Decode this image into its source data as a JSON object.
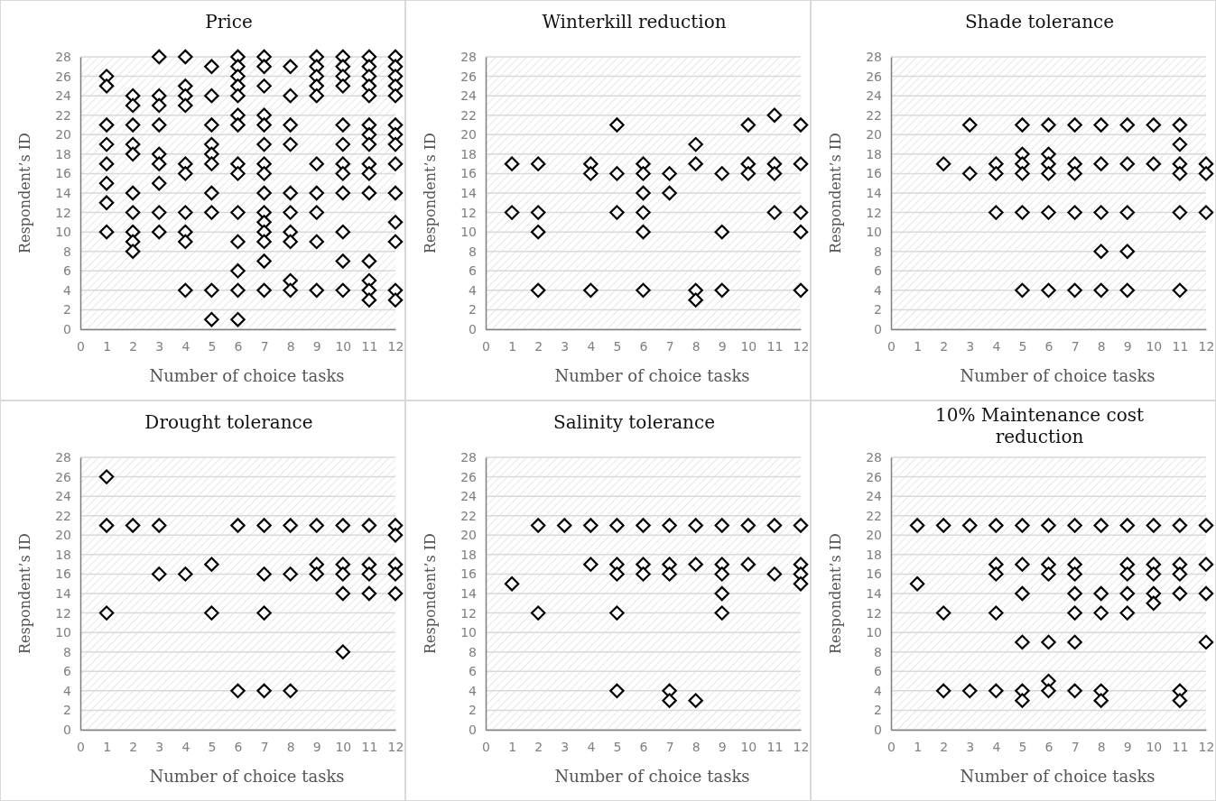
{
  "chart_data": [
    {
      "type": "scatter",
      "title": "Price",
      "xlabel": "Number of choice tasks",
      "ylabel": "Respondent’s ID",
      "xlim": [
        0,
        12
      ],
      "xticks": [
        0,
        1,
        2,
        3,
        4,
        5,
        6,
        7,
        8,
        9,
        10,
        11,
        12
      ],
      "ylim": [
        0,
        28
      ],
      "yticks": [
        0,
        2,
        4,
        6,
        8,
        10,
        12,
        14,
        16,
        18,
        20,
        22,
        24,
        26,
        28
      ],
      "grid": "y",
      "marker": "diamond",
      "series": [
        {
          "color": "#000000",
          "x": [
            1,
            1,
            1,
            1,
            1,
            1,
            1,
            1,
            2,
            2,
            2,
            2,
            2,
            2,
            2,
            2,
            2,
            2,
            3,
            3,
            3,
            3,
            3,
            3,
            3,
            3,
            3,
            4,
            4,
            4,
            4,
            4,
            4,
            4,
            4,
            4,
            4,
            5,
            5,
            5,
            5,
            5,
            5,
            5,
            5,
            5,
            5,
            6,
            6,
            6,
            6,
            6,
            6,
            6,
            6,
            6,
            6,
            6,
            6,
            6,
            6,
            7,
            7,
            7,
            7,
            7,
            7,
            7,
            7,
            7,
            7,
            7,
            7,
            7,
            7,
            7,
            8,
            8,
            8,
            8,
            8,
            8,
            8,
            8,
            8,
            8,
            9,
            9,
            9,
            9,
            9,
            9,
            9,
            9,
            9,
            9,
            10,
            10,
            10,
            10,
            10,
            10,
            10,
            10,
            10,
            10,
            10,
            10,
            11,
            11,
            11,
            11,
            11,
            11,
            11,
            11,
            11,
            11,
            11,
            11,
            11,
            11,
            11,
            12,
            12,
            12,
            12,
            12,
            12,
            12,
            12,
            12,
            12,
            12,
            12,
            12,
            12
          ],
          "values": [
            26,
            25,
            21,
            19,
            17,
            15,
            13,
            10,
            24,
            23,
            21,
            19,
            18,
            14,
            12,
            10,
            9,
            8,
            28,
            24,
            23,
            21,
            18,
            17,
            15,
            12,
            10,
            28,
            25,
            24,
            23,
            17,
            16,
            12,
            10,
            9,
            4,
            27,
            24,
            21,
            19,
            18,
            17,
            14,
            12,
            4,
            1,
            28,
            27,
            26,
            25,
            24,
            22,
            21,
            17,
            16,
            12,
            9,
            6,
            4,
            1,
            28,
            27,
            25,
            22,
            21,
            19,
            17,
            16,
            14,
            12,
            11,
            10,
            9,
            7,
            4,
            27,
            24,
            21,
            19,
            14,
            12,
            10,
            9,
            5,
            4,
            28,
            27,
            26,
            25,
            24,
            17,
            14,
            12,
            9,
            4,
            28,
            27,
            26,
            25,
            21,
            19,
            17,
            16,
            14,
            10,
            7,
            4,
            28,
            27,
            26,
            25,
            24,
            21,
            20,
            19,
            17,
            16,
            14,
            7,
            5,
            4,
            3,
            28,
            27,
            26,
            25,
            24,
            21,
            20,
            19,
            17,
            14,
            11,
            9,
            4,
            3
          ]
        }
      ]
    },
    {
      "type": "scatter",
      "title": "Winterkill reduction",
      "xlabel": "Number of choice tasks",
      "ylabel": "Respondent’s ID",
      "xlim": [
        0,
        12
      ],
      "xticks": [
        0,
        1,
        2,
        3,
        4,
        5,
        6,
        7,
        8,
        9,
        10,
        11,
        12
      ],
      "ylim": [
        0,
        28
      ],
      "yticks": [
        0,
        2,
        4,
        6,
        8,
        10,
        12,
        14,
        16,
        18,
        20,
        22,
        24,
        26,
        28
      ],
      "grid": "y",
      "marker": "diamond",
      "series": [
        {
          "color": "#000000",
          "x": [
            1,
            1,
            2,
            2,
            2,
            2,
            4,
            4,
            4,
            5,
            5,
            5,
            6,
            6,
            6,
            6,
            6,
            6,
            7,
            7,
            8,
            8,
            8,
            8,
            9,
            9,
            9,
            10,
            10,
            10,
            11,
            11,
            11,
            11,
            12,
            12,
            12,
            12,
            12
          ],
          "values": [
            17,
            12,
            17,
            12,
            10,
            4,
            17,
            16,
            4,
            21,
            16,
            12,
            17,
            16,
            14,
            12,
            10,
            4,
            16,
            14,
            19,
            17,
            4,
            3,
            16,
            10,
            4,
            21,
            17,
            16,
            22,
            17,
            16,
            12,
            21,
            17,
            12,
            10,
            4
          ]
        }
      ]
    },
    {
      "type": "scatter",
      "title": "Shade tolerance",
      "xlabel": "Number of choice tasks",
      "ylabel": "Respondent’s ID",
      "xlim": [
        0,
        12
      ],
      "xticks": [
        0,
        1,
        2,
        3,
        4,
        5,
        6,
        7,
        8,
        9,
        10,
        11,
        12
      ],
      "ylim": [
        0,
        28
      ],
      "yticks": [
        0,
        2,
        4,
        6,
        8,
        10,
        12,
        14,
        16,
        18,
        20,
        22,
        24,
        26,
        28
      ],
      "grid": "y",
      "marker": "diamond",
      "series": [
        {
          "color": "#000000",
          "x": [
            2,
            3,
            3,
            4,
            4,
            4,
            5,
            5,
            5,
            5,
            5,
            5,
            6,
            6,
            6,
            6,
            6,
            6,
            7,
            7,
            7,
            7,
            7,
            8,
            8,
            8,
            8,
            8,
            9,
            9,
            9,
            9,
            9,
            10,
            10,
            11,
            11,
            11,
            11,
            11,
            11,
            12,
            12,
            12
          ],
          "values": [
            17,
            21,
            16,
            17,
            16,
            12,
            21,
            18,
            17,
            16,
            12,
            4,
            21,
            18,
            17,
            16,
            12,
            4,
            21,
            17,
            16,
            12,
            4,
            21,
            17,
            12,
            8,
            4,
            21,
            17,
            12,
            8,
            4,
            21,
            17,
            21,
            19,
            17,
            16,
            12,
            4,
            17,
            16,
            12
          ]
        }
      ]
    },
    {
      "type": "scatter",
      "title": "Drought tolerance",
      "xlabel": "Number of choice tasks",
      "ylabel": "Respondent’s ID",
      "xlim": [
        0,
        12
      ],
      "xticks": [
        0,
        1,
        2,
        3,
        4,
        5,
        6,
        7,
        8,
        9,
        10,
        11,
        12
      ],
      "ylim": [
        0,
        28
      ],
      "yticks": [
        0,
        2,
        4,
        6,
        8,
        10,
        12,
        14,
        16,
        18,
        20,
        22,
        24,
        26,
        28
      ],
      "grid": "y",
      "marker": "diamond",
      "series": [
        {
          "color": "#000000",
          "x": [
            1,
            1,
            1,
            2,
            3,
            3,
            4,
            5,
            5,
            6,
            6,
            7,
            7,
            7,
            7,
            8,
            8,
            8,
            9,
            9,
            9,
            10,
            10,
            10,
            10,
            10,
            11,
            11,
            11,
            11,
            12,
            12,
            12,
            12,
            12
          ],
          "values": [
            26,
            21,
            12,
            21,
            21,
            16,
            16,
            17,
            12,
            21,
            4,
            21,
            16,
            12,
            4,
            21,
            16,
            4,
            21,
            17,
            16,
            21,
            17,
            16,
            14,
            8,
            21,
            17,
            16,
            14,
            21,
            20,
            17,
            16,
            14
          ]
        }
      ]
    },
    {
      "type": "scatter",
      "title": "Salinity tolerance",
      "xlabel": "Number of choice tasks",
      "ylabel": "Respondent’s ID",
      "xlim": [
        0,
        12
      ],
      "xticks": [
        0,
        1,
        2,
        3,
        4,
        5,
        6,
        7,
        8,
        9,
        10,
        11,
        12
      ],
      "ylim": [
        0,
        28
      ],
      "yticks": [
        0,
        2,
        4,
        6,
        8,
        10,
        12,
        14,
        16,
        18,
        20,
        22,
        24,
        26,
        28
      ],
      "grid": "y",
      "marker": "diamond",
      "series": [
        {
          "color": "#000000",
          "x": [
            1,
            2,
            2,
            3,
            4,
            4,
            5,
            5,
            5,
            5,
            5,
            6,
            6,
            6,
            7,
            7,
            7,
            7,
            7,
            8,
            8,
            8,
            9,
            9,
            9,
            9,
            9,
            10,
            10,
            11,
            11,
            12,
            12,
            12,
            12
          ],
          "values": [
            15,
            21,
            12,
            21,
            21,
            17,
            21,
            17,
            16,
            12,
            4,
            21,
            17,
            16,
            21,
            17,
            16,
            4,
            3,
            21,
            17,
            3,
            21,
            17,
            16,
            14,
            12,
            21,
            17,
            21,
            16,
            21,
            17,
            16,
            15
          ]
        }
      ]
    },
    {
      "type": "scatter",
      "title": "10% Maintenance cost reduction",
      "xlabel": "Number of choice tasks",
      "ylabel": "Respondent’s ID",
      "xlim": [
        0,
        12
      ],
      "xticks": [
        0,
        1,
        2,
        3,
        4,
        5,
        6,
        7,
        8,
        9,
        10,
        11,
        12
      ],
      "ylim": [
        0,
        28
      ],
      "yticks": [
        0,
        2,
        4,
        6,
        8,
        10,
        12,
        14,
        16,
        18,
        20,
        22,
        24,
        26,
        28
      ],
      "grid": "y",
      "marker": "diamond",
      "series": [
        {
          "color": "#000000",
          "x": [
            1,
            1,
            2,
            2,
            2,
            3,
            3,
            4,
            4,
            4,
            4,
            4,
            5,
            5,
            5,
            5,
            5,
            5,
            6,
            6,
            6,
            6,
            6,
            6,
            7,
            7,
            7,
            7,
            7,
            7,
            7,
            8,
            8,
            8,
            8,
            8,
            9,
            9,
            9,
            9,
            9,
            10,
            10,
            10,
            10,
            10,
            11,
            11,
            11,
            11,
            11,
            11,
            12,
            12,
            12,
            12
          ],
          "values": [
            21,
            15,
            21,
            12,
            4,
            21,
            4,
            21,
            17,
            16,
            12,
            4,
            21,
            17,
            14,
            9,
            4,
            3,
            21,
            17,
            16,
            9,
            5,
            4,
            21,
            17,
            16,
            14,
            12,
            9,
            4,
            21,
            14,
            12,
            4,
            3,
            21,
            17,
            16,
            14,
            12,
            21,
            17,
            16,
            14,
            13,
            21,
            17,
            16,
            14,
            4,
            3,
            21,
            17,
            14,
            9
          ]
        }
      ]
    }
  ]
}
